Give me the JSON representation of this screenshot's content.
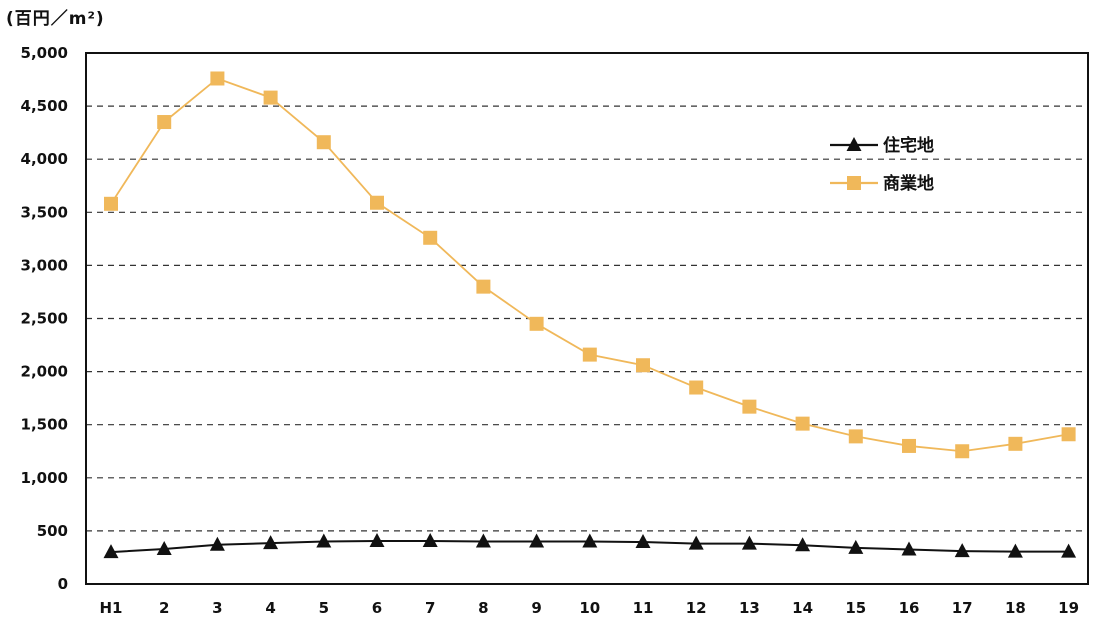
{
  "chart_data": {
    "type": "line",
    "unit_label": "(百円／m²)",
    "categories": [
      "H1",
      "2",
      "3",
      "4",
      "5",
      "6",
      "7",
      "8",
      "9",
      "10",
      "11",
      "12",
      "13",
      "14",
      "15",
      "16",
      "17",
      "18",
      "19"
    ],
    "y_ticks": [
      "0",
      "500",
      "1,000",
      "1,500",
      "2,000",
      "2,500",
      "3,000",
      "3,500",
      "4,000",
      "4,500",
      "5,000"
    ],
    "ylim": [
      0,
      5000
    ],
    "grid": true,
    "legend_position": "top-right",
    "series": [
      {
        "name": "住宅地",
        "color": "#111111",
        "marker": "triangle",
        "values": [
          300,
          330,
          370,
          385,
          400,
          405,
          405,
          400,
          400,
          400,
          395,
          380,
          380,
          365,
          340,
          325,
          310,
          305,
          305
        ]
      },
      {
        "name": "商業地",
        "color": "#f0b85a",
        "marker": "square",
        "values": [
          3580,
          4350,
          4760,
          4580,
          4160,
          3590,
          3260,
          2800,
          2450,
          2160,
          2060,
          1850,
          1670,
          1510,
          1390,
          1300,
          1250,
          1320,
          1410
        ]
      }
    ]
  }
}
